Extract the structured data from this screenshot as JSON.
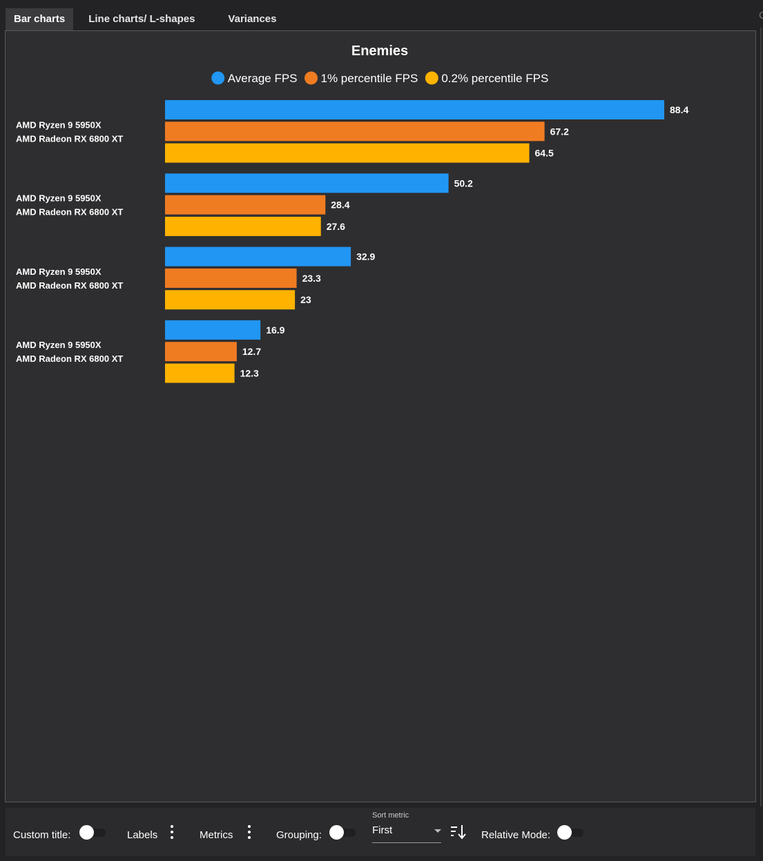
{
  "tabs": [
    "Bar charts",
    "Line charts/ L-shapes",
    "Variances"
  ],
  "edge_glyph": "C",
  "chart_data": {
    "type": "bar",
    "orientation": "horizontal",
    "title": "Enemies",
    "categories": [
      [
        "AMD Ryzen 9 5950X",
        "AMD Radeon RX 6800 XT"
      ],
      [
        "AMD Ryzen 9 5950X",
        "AMD Radeon RX 6800 XT"
      ],
      [
        "AMD Ryzen 9 5950X",
        "AMD Radeon RX 6800 XT"
      ],
      [
        "AMD Ryzen 9 5950X",
        "AMD Radeon RX 6800 XT"
      ]
    ],
    "series": [
      {
        "name": "Average FPS",
        "color": "#2196f3",
        "values": [
          88.4,
          50.2,
          32.9,
          16.9
        ]
      },
      {
        "name": "1% percentile FPS",
        "color": "#f07c22",
        "values": [
          67.2,
          28.4,
          23.3,
          12.7
        ]
      },
      {
        "name": "0.2% percentile FPS",
        "color": "#ffb300",
        "values": [
          64.5,
          27.6,
          23,
          12.3
        ]
      }
    ],
    "xlim": [
      0,
      88.4
    ],
    "grid": false,
    "legend": "top-center"
  },
  "controls": {
    "custom_title_label": "Custom title:",
    "custom_title_on": false,
    "labels_label": "Labels",
    "metrics_label": "Metrics",
    "grouping_label": "Grouping:",
    "grouping_on": false,
    "sort_metric_caption": "Sort metric",
    "sort_metric_value": "First",
    "relative_mode_label": "Relative Mode:",
    "relative_mode_on": false
  }
}
